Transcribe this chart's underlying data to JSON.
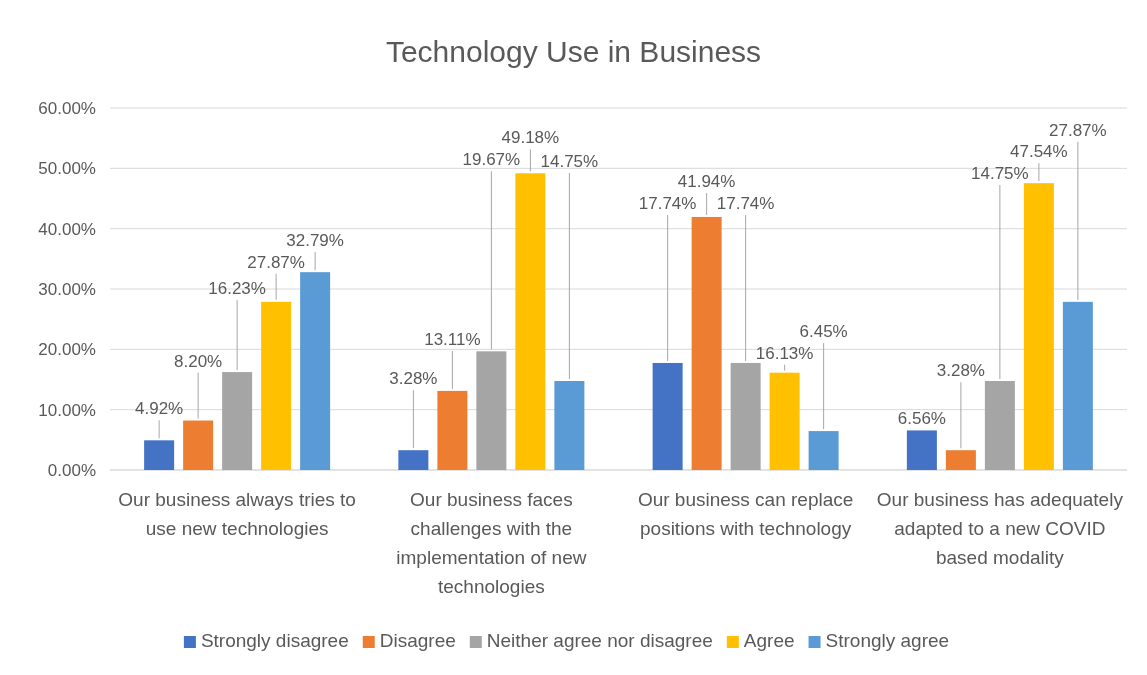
{
  "chart_data": {
    "type": "bar",
    "title": "Technology Use in Business",
    "categories": [
      "Our business always tries to use new technologies",
      "Our business faces challenges with the implementation of new technologies",
      "Our business can replace positions with technology",
      "Our business has adequately adapted to a new COVID based modality"
    ],
    "series": [
      {
        "name": "Strongly disagree",
        "color": "#4472c4",
        "values": [
          4.92,
          3.28,
          17.74,
          6.56
        ],
        "value_labels": [
          "4.92%",
          "3.28%",
          "17.74%",
          "6.56%"
        ]
      },
      {
        "name": "Disagree",
        "color": "#ed7d31",
        "values": [
          8.2,
          13.11,
          41.94,
          3.28
        ],
        "value_labels": [
          "8.20%",
          "13.11%",
          "41.94%",
          "3.28%"
        ]
      },
      {
        "name": "Neither agree nor disagree",
        "color": "#a5a5a5",
        "values": [
          16.23,
          19.67,
          17.74,
          14.75
        ],
        "value_labels": [
          "16.23%",
          "19.67%",
          "17.74%",
          "14.75%"
        ]
      },
      {
        "name": "Agree",
        "color": "#ffc000",
        "values": [
          27.87,
          49.18,
          16.13,
          47.54
        ],
        "value_labels": [
          "27.87%",
          "49.18%",
          "16.13%",
          "47.54%"
        ]
      },
      {
        "name": "Strongly agree",
        "color": "#5b9bd5",
        "values": [
          32.79,
          14.75,
          6.45,
          27.87
        ],
        "value_labels": [
          "32.79%",
          "14.75%",
          "6.45%",
          "27.87%"
        ]
      }
    ],
    "ylim": [
      0,
      60
    ],
    "yticks": [
      {
        "value": 0,
        "label": "0.00%"
      },
      {
        "value": 10,
        "label": "10.00%"
      },
      {
        "value": 20,
        "label": "20.00%"
      },
      {
        "value": 30,
        "label": "30.00%"
      },
      {
        "value": 40,
        "label": "40.00%"
      },
      {
        "value": 50,
        "label": "50.00%"
      },
      {
        "value": 60,
        "label": "60.00%"
      }
    ],
    "grid": "y",
    "legend": "bottom"
  }
}
